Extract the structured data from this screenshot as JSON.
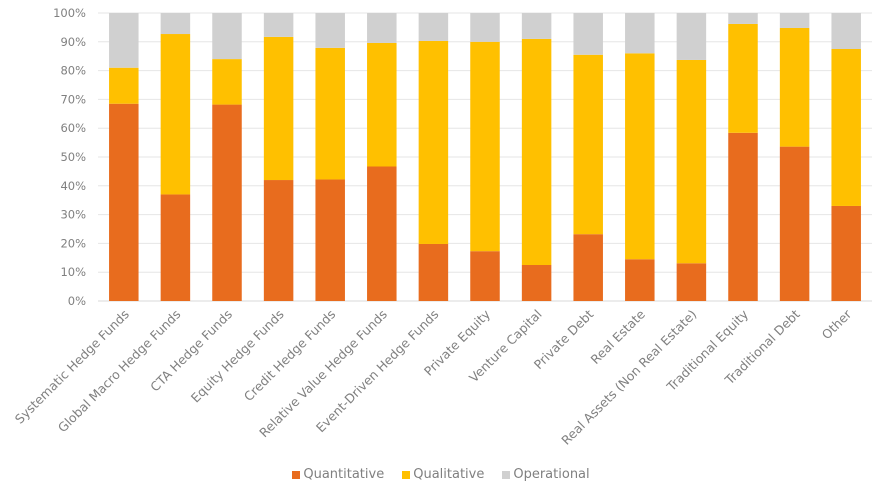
{
  "chart_data": {
    "type": "bar",
    "stacked": true,
    "percent_stacked": true,
    "title": "",
    "xlabel": "",
    "ylabel": "",
    "ylim": [
      0,
      100
    ],
    "yticks": [
      "0%",
      "10%",
      "20%",
      "30%",
      "40%",
      "50%",
      "60%",
      "70%",
      "80%",
      "90%",
      "100%"
    ],
    "grid": true,
    "legend_position": "bottom",
    "categories": [
      "Systematic Hedge Funds",
      "Global Macro Hedge Funds",
      "CTA Hedge Funds",
      "Equity Hedge Funds",
      "Credit Hedge Funds",
      "Relative Value Hedge Funds",
      "Event-Driven Hedge Funds",
      "Private Equity",
      "Venture Capital",
      "Private Debt",
      "Real Estate",
      "Real Assets (Non Real Estate)",
      "Traditional Equity",
      "Traditional Debt",
      "Other"
    ],
    "series": [
      {
        "name": "Quantitative",
        "color": "#E86C1E",
        "values": [
          68.5,
          37.0,
          68.2,
          42.0,
          42.2,
          46.7,
          19.8,
          17.3,
          12.5,
          23.2,
          14.5,
          13.1,
          58.4,
          53.6,
          33.0
        ]
      },
      {
        "name": "Qualitative",
        "color": "#FFC000",
        "values": [
          12.5,
          55.7,
          15.8,
          49.7,
          45.7,
          42.9,
          70.5,
          72.7,
          78.5,
          62.3,
          71.5,
          70.6,
          37.8,
          41.2,
          54.5
        ]
      },
      {
        "name": "Operational",
        "color": "#D0D0D0",
        "values": [
          19.0,
          7.3,
          16.0,
          8.3,
          12.1,
          10.4,
          9.7,
          10.0,
          9.0,
          14.5,
          14.0,
          16.3,
          3.8,
          5.2,
          12.5
        ]
      }
    ]
  },
  "legend": [
    {
      "label": "Quantitative",
      "color": "#E86C1E"
    },
    {
      "label": "Qualitative",
      "color": "#FFC000"
    },
    {
      "label": "Operational",
      "color": "#D0D0D0"
    }
  ]
}
